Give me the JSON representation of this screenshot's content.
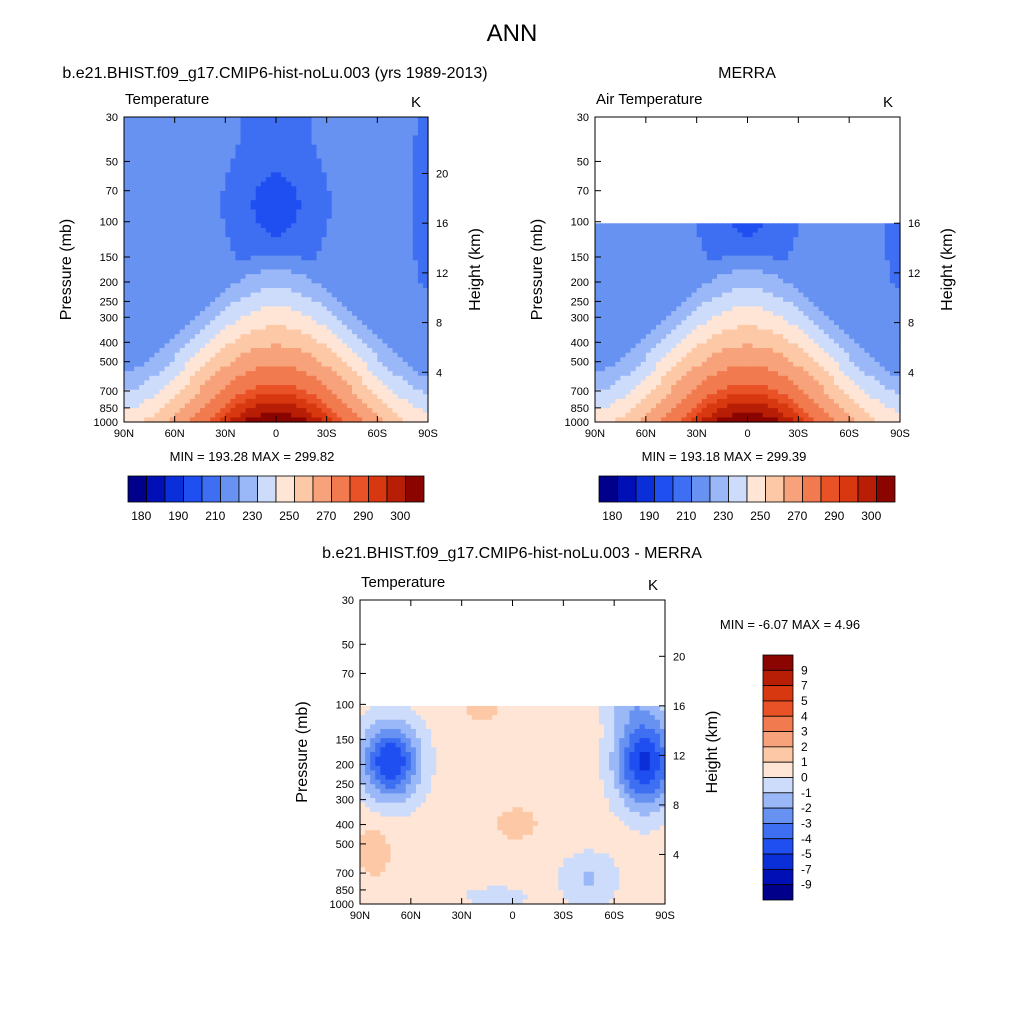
{
  "page": {
    "title": "ANN"
  },
  "chart_data": [
    {
      "type": "heatmap",
      "title": "b.e21.BHIST.f09_g17.CMIP6-hist-noLu.003 (yrs 1989-2013)",
      "left_label": "Temperature",
      "units": "K",
      "ylabel": "Pressure (mb)",
      "ylabel_right": "Height (km)",
      "x_ticks": [
        "90N",
        "60N",
        "30N",
        "0",
        "30S",
        "60S",
        "90S"
      ],
      "y_ticks": [
        30,
        50,
        70,
        100,
        150,
        200,
        250,
        300,
        400,
        500,
        700,
        850,
        1000
      ],
      "height_ticks": [
        4,
        8,
        12,
        16,
        20
      ],
      "min_max": "MIN = 193.28  MAX = 299.82",
      "colorbar_labels": [
        "180",
        "190",
        "210",
        "230",
        "250",
        "270",
        "290",
        "300"
      ],
      "levels": [
        180,
        185,
        190,
        200,
        210,
        220,
        230,
        240,
        250,
        260,
        270,
        280,
        285,
        290,
        295,
        300
      ],
      "colors": [
        "#00008a",
        "#0010b6",
        "#0a2fd8",
        "#1f4ff0",
        "#3e6ef2",
        "#6792f2",
        "#9ab8f8",
        "#cddcfa",
        "#ffe5d6",
        "#fdc8a6",
        "#f7a27a",
        "#f17a4f",
        "#e95226",
        "#d8380f",
        "#b81e06",
        "#8a0500"
      ],
      "data_mask_top_mb": null,
      "model": "tropo_model",
      "stats": {
        "min": 193.28,
        "max": 299.82
      }
    },
    {
      "type": "heatmap",
      "title": "MERRA",
      "left_label": "Air Temperature",
      "units": "K",
      "ylabel": "Pressure (mb)",
      "ylabel_right": "Height (km)",
      "x_ticks": [
        "90N",
        "60N",
        "30N",
        "0",
        "30S",
        "60S",
        "90S"
      ],
      "y_ticks": [
        30,
        50,
        70,
        100,
        150,
        200,
        250,
        300,
        400,
        500,
        700,
        850,
        1000
      ],
      "height_ticks": [
        4,
        8,
        12,
        16
      ],
      "min_max": "MIN = 193.18  MAX = 299.39",
      "colorbar_labels": [
        "180",
        "190",
        "210",
        "230",
        "250",
        "270",
        "290",
        "300"
      ],
      "levels": [
        180,
        185,
        190,
        200,
        210,
        220,
        230,
        240,
        250,
        260,
        270,
        280,
        285,
        290,
        295,
        300
      ],
      "colors": [
        "#00008a",
        "#0010b6",
        "#0a2fd8",
        "#1f4ff0",
        "#3e6ef2",
        "#6792f2",
        "#9ab8f8",
        "#cddcfa",
        "#ffe5d6",
        "#fdc8a6",
        "#f7a27a",
        "#f17a4f",
        "#e95226",
        "#d8380f",
        "#b81e06",
        "#8a0500"
      ],
      "data_mask_top_mb": 100,
      "model": "tropo_obs",
      "stats": {
        "min": 193.18,
        "max": 299.39
      }
    },
    {
      "type": "heatmap",
      "title": "b.e21.BHIST.f09_g17.CMIP6-hist-noLu.003 - MERRA",
      "left_label": "Temperature",
      "units": "K",
      "ylabel": "Pressure (mb)",
      "ylabel_right": "Height (km)",
      "x_ticks": [
        "90N",
        "60N",
        "30N",
        "0",
        "30S",
        "60S",
        "90S"
      ],
      "y_ticks": [
        30,
        50,
        70,
        100,
        150,
        200,
        250,
        300,
        400,
        500,
        700,
        850,
        1000
      ],
      "height_ticks": [
        4,
        8,
        12,
        16,
        20
      ],
      "min_max": "MIN =  -6.07  MAX =   4.96",
      "colorbar_labels": [
        "9",
        "7",
        "5",
        "4",
        "3",
        "2",
        "1",
        "0",
        "-1",
        "-2",
        "-3",
        "-4",
        "-5",
        "-7",
        "-9"
      ],
      "levels": [
        -9,
        -7,
        -5,
        -4,
        -3,
        -2,
        -1,
        0,
        1,
        2,
        3,
        4,
        5,
        7,
        9
      ],
      "colors": [
        "#00008a",
        "#0010b6",
        "#0a2fd8",
        "#1f4ff0",
        "#3e6ef2",
        "#6792f2",
        "#9ab8f8",
        "#cddcfa",
        "#ffe5d6",
        "#fdc8a6",
        "#f7a27a",
        "#f17a4f",
        "#e95226",
        "#d8380f",
        "#b81e06",
        "#8a0500"
      ],
      "data_mask_top_mb": 100,
      "model": "difference",
      "stats": {
        "min": -6.07,
        "max": 4.96
      }
    }
  ]
}
